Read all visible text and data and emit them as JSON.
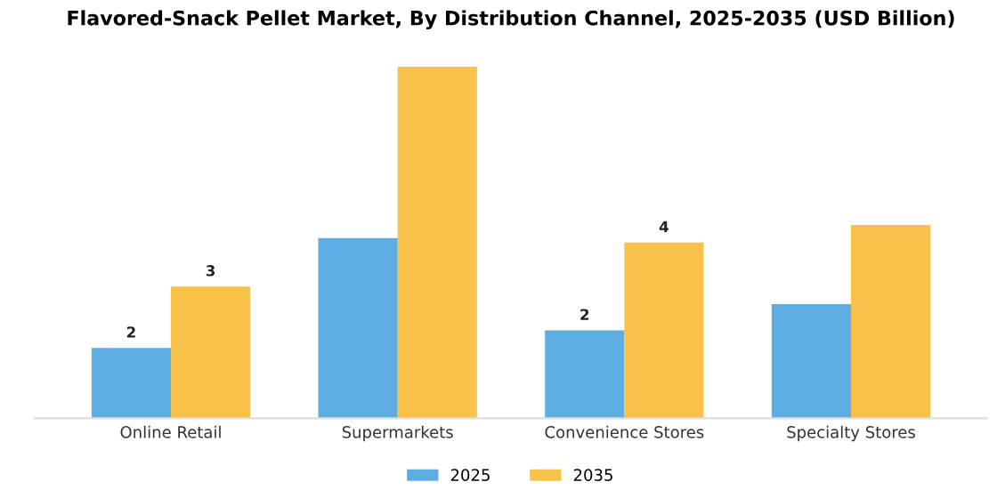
{
  "chart_data": {
    "type": "bar",
    "title": "Flavored-Snack Pellet Market, By Distribution Channel, 2025-2035 (USD Billion)",
    "categories": [
      "Online Retail",
      "Supermarkets",
      "Convenience Stores",
      "Specialty Stores"
    ],
    "series": [
      {
        "name": "2025",
        "color": "#5dade2",
        "values": [
          1.6,
          4.1,
          2.0,
          2.6
        ],
        "value_labels": [
          "2",
          null,
          "2",
          null
        ]
      },
      {
        "name": "2035",
        "color": "#f7c14a",
        "values": [
          3.0,
          8.0,
          4.0,
          4.4
        ],
        "value_labels": [
          "3",
          null,
          "4",
          null
        ]
      }
    ],
    "legend": "bottom",
    "grid": false,
    "tick_labels": "x"
  }
}
